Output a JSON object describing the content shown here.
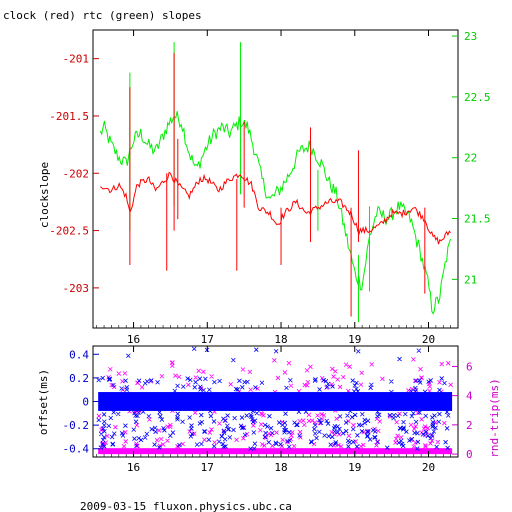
{
  "title": "clock (red) rtc (green) slopes",
  "footer": "2009-03-15 fluxon.physics.ubc.ca",
  "colors": {
    "clock": "#ff0000",
    "rtc": "#00ee00",
    "offset": "#0000ff",
    "rndtrip": "#ff00ff",
    "axis_left_top": "#cc0000",
    "axis_right_top": "#00cc00",
    "axis_left_bottom": "#0000cc",
    "axis_right_bottom": "#cc00cc",
    "frame": "#000000"
  },
  "chart_data": [
    {
      "type": "line",
      "title": "clock (red) rtc (green) slopes",
      "ylabel": "clockslope",
      "xlim": [
        15.45,
        20.4
      ],
      "ylim": [
        -203.35,
        -200.75
      ],
      "y2lim": [
        20.6,
        23.05
      ],
      "x_ticks": [
        "16",
        "17",
        "18",
        "19",
        "20"
      ],
      "y_ticks": [
        "-201",
        "-201.5",
        "-202",
        "-202.5",
        "-203"
      ],
      "y2_ticks": [
        "23",
        "22.5",
        "22",
        "21.5",
        "21"
      ],
      "series": [
        {
          "name": "clock",
          "axis": "left",
          "x": [
            15.55,
            15.7,
            15.8,
            15.9,
            15.95,
            16.05,
            16.2,
            16.3,
            16.5,
            16.6,
            16.75,
            16.9,
            17.0,
            17.15,
            17.3,
            17.45,
            17.6,
            17.7,
            17.85,
            17.95,
            18.05,
            18.2,
            18.35,
            18.5,
            18.65,
            18.8,
            18.95,
            19.05,
            19.2,
            19.35,
            19.5,
            19.65,
            19.8,
            19.95,
            20.05,
            20.15,
            20.3
          ],
          "y": [
            -202.1,
            -202.15,
            -202.1,
            -202.2,
            -202.35,
            -202.1,
            -202.05,
            -202.15,
            -202.0,
            -202.1,
            -202.2,
            -202.05,
            -202.05,
            -202.15,
            -202.05,
            -202.0,
            -202.1,
            -202.3,
            -202.35,
            -202.45,
            -202.35,
            -202.25,
            -202.35,
            -202.3,
            -202.25,
            -202.25,
            -202.35,
            -202.5,
            -202.5,
            -202.45,
            -202.35,
            -202.35,
            -202.3,
            -202.4,
            -202.55,
            -202.6,
            -202.5
          ],
          "spikes": [
            {
              "x": 15.95,
              "lo": -202.8,
              "hi": -201.25
            },
            {
              "x": 16.45,
              "lo": -202.85,
              "hi": -202.0
            },
            {
              "x": 16.55,
              "lo": -202.5,
              "hi": -200.95
            },
            {
              "x": 16.6,
              "lo": -202.4,
              "hi": -201.7
            },
            {
              "x": 17.4,
              "lo": -202.85,
              "hi": -202.05
            },
            {
              "x": 17.5,
              "lo": -202.3,
              "hi": -201.55
            },
            {
              "x": 18.0,
              "lo": -202.8,
              "hi": -202.3
            },
            {
              "x": 18.4,
              "lo": -202.6,
              "hi": -201.6
            },
            {
              "x": 18.95,
              "lo": -203.25,
              "hi": -202.3
            },
            {
              "x": 19.05,
              "lo": -202.6,
              "hi": -201.8
            },
            {
              "x": 19.95,
              "lo": -203.05,
              "hi": -202.3
            }
          ]
        },
        {
          "name": "rtc",
          "axis": "right",
          "x": [
            15.55,
            15.6,
            15.7,
            15.8,
            15.9,
            16.0,
            16.1,
            16.2,
            16.3,
            16.45,
            16.55,
            16.65,
            16.75,
            16.85,
            17.0,
            17.1,
            17.2,
            17.3,
            17.45,
            17.55,
            17.65,
            17.75,
            17.85,
            18.0,
            18.1,
            18.25,
            18.4,
            18.55,
            18.65,
            18.75,
            18.85,
            19.0,
            19.1,
            19.2,
            19.3,
            19.45,
            19.6,
            19.75,
            19.9,
            20.0,
            20.05,
            20.15,
            20.25,
            20.3
          ],
          "y": [
            22.2,
            22.25,
            22.1,
            22.0,
            21.95,
            22.15,
            22.2,
            22.1,
            22.05,
            22.25,
            22.35,
            22.3,
            22.05,
            21.9,
            22.1,
            22.2,
            22.25,
            22.2,
            22.3,
            22.25,
            22.05,
            21.8,
            21.65,
            21.75,
            21.85,
            22.05,
            22.1,
            21.95,
            21.8,
            21.7,
            21.45,
            21.05,
            20.95,
            21.35,
            21.55,
            21.5,
            21.6,
            21.5,
            21.2,
            20.95,
            20.75,
            20.85,
            21.2,
            21.3
          ],
          "spikes": [
            {
              "x": 15.95,
              "lo": 21.4,
              "hi": 22.7
            },
            {
              "x": 16.55,
              "lo": 21.6,
              "hi": 22.95
            },
            {
              "x": 17.45,
              "lo": 21.7,
              "hi": 22.95
            },
            {
              "x": 18.5,
              "lo": 21.4,
              "hi": 21.9
            },
            {
              "x": 19.05,
              "lo": 20.65,
              "hi": 21.2
            },
            {
              "x": 19.2,
              "lo": 20.9,
              "hi": 21.6
            }
          ]
        }
      ]
    },
    {
      "type": "scatter",
      "ylabel": "offset(ms)",
      "y2label": "rnd-trip(ms)",
      "xlim": [
        15.45,
        20.4
      ],
      "ylim": [
        -0.47,
        0.47
      ],
      "y2lim": [
        -0.2,
        7.4
      ],
      "x_ticks": [
        "16",
        "17",
        "18",
        "19",
        "20"
      ],
      "y_ticks": [
        "0.4",
        "0.2",
        "0",
        "-0.2",
        "-0.4"
      ],
      "y2_ticks": [
        "6",
        "4",
        "2",
        "0"
      ],
      "series": [
        {
          "name": "offset",
          "axis": "left",
          "band": [
            -0.08,
            0.08
          ],
          "scatter_range": [
            -0.42,
            0.45
          ]
        },
        {
          "name": "rnd-trip",
          "axis": "right",
          "baseline": 0.2,
          "scatter_range": [
            0.5,
            6.5
          ]
        }
      ]
    }
  ]
}
